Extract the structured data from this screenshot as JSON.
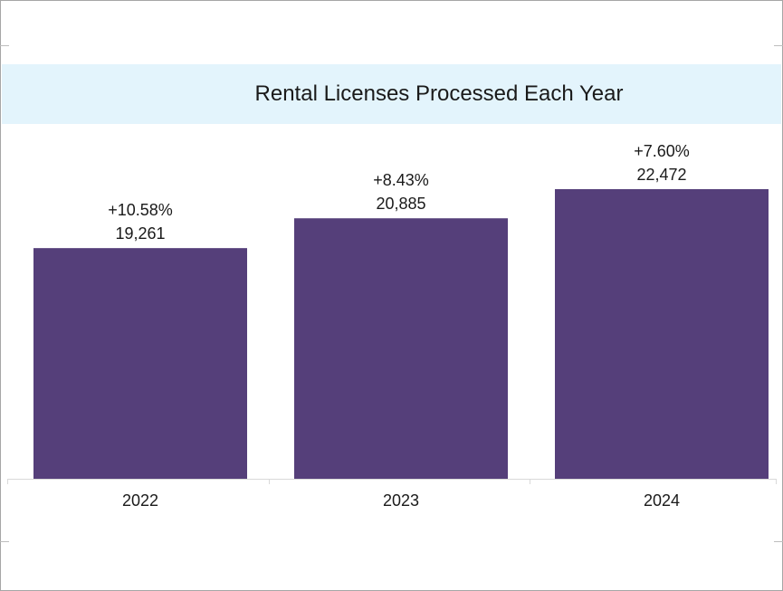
{
  "chart_data": {
    "type": "bar",
    "title": "Rental Licenses Processed Each Year",
    "categories": [
      "2022",
      "2023",
      "2024"
    ],
    "values": [
      19261,
      20885,
      22472
    ],
    "value_labels": [
      "19,261",
      "20,885",
      "22,472"
    ],
    "change_labels": [
      "+10.58%",
      "+8.43%",
      "+7.60%"
    ],
    "xlabel": "",
    "ylabel": "",
    "ylim": [
      0,
      23000
    ],
    "grid": false,
    "legend": "none",
    "bar_color": "#553f7a",
    "title_band_color": "#e3f4fc"
  }
}
